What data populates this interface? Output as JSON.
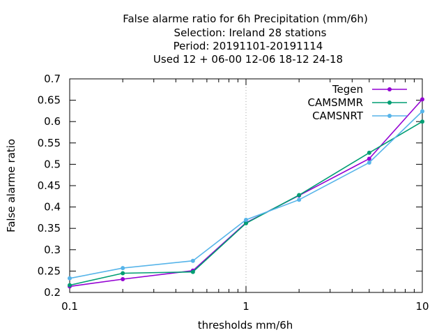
{
  "chart_data": {
    "type": "line",
    "title_lines": [
      "False alarme ratio  for 6h Precipitation (mm/6h)",
      "Selection: Ireland     28 stations",
      "Period: 20191101-20191114",
      "Used  12 + 06-00 12-06 18-12 24-18"
    ],
    "xlabel": "thresholds mm/6h",
    "ylabel": "False alarme ratio",
    "x_scale": "log",
    "xlim": [
      0.1,
      10
    ],
    "ylim": [
      0.2,
      0.7
    ],
    "x_ticks": [
      0.1,
      1,
      10
    ],
    "x_tick_labels": [
      "0.1",
      "1",
      "10"
    ],
    "y_ticks": [
      0.2,
      0.25,
      0.3,
      0.35,
      0.4,
      0.45,
      0.5,
      0.55,
      0.6,
      0.65,
      0.7
    ],
    "y_tick_labels": [
      "0.2",
      "0.25",
      "0.3",
      "0.35",
      "0.4",
      "0.45",
      "0.5",
      "0.55",
      "0.6",
      "0.65",
      "0.7"
    ],
    "x": [
      0.1,
      0.2,
      0.5,
      1,
      2,
      5,
      10
    ],
    "grid": "x-major dotted",
    "legend_position": "top-right",
    "series": [
      {
        "name": "Tegen",
        "color": "#9400d3",
        "values": [
          0.214,
          0.231,
          0.251,
          0.363,
          0.427,
          0.513,
          0.652
        ]
      },
      {
        "name": "CAMSMMR",
        "color": "#009e73",
        "values": [
          0.217,
          0.245,
          0.248,
          0.362,
          0.428,
          0.527,
          0.6
        ]
      },
      {
        "name": "CAMSNRT",
        "color": "#56b4e9",
        "values": [
          0.233,
          0.257,
          0.274,
          0.37,
          0.417,
          0.504,
          0.624
        ]
      }
    ]
  }
}
